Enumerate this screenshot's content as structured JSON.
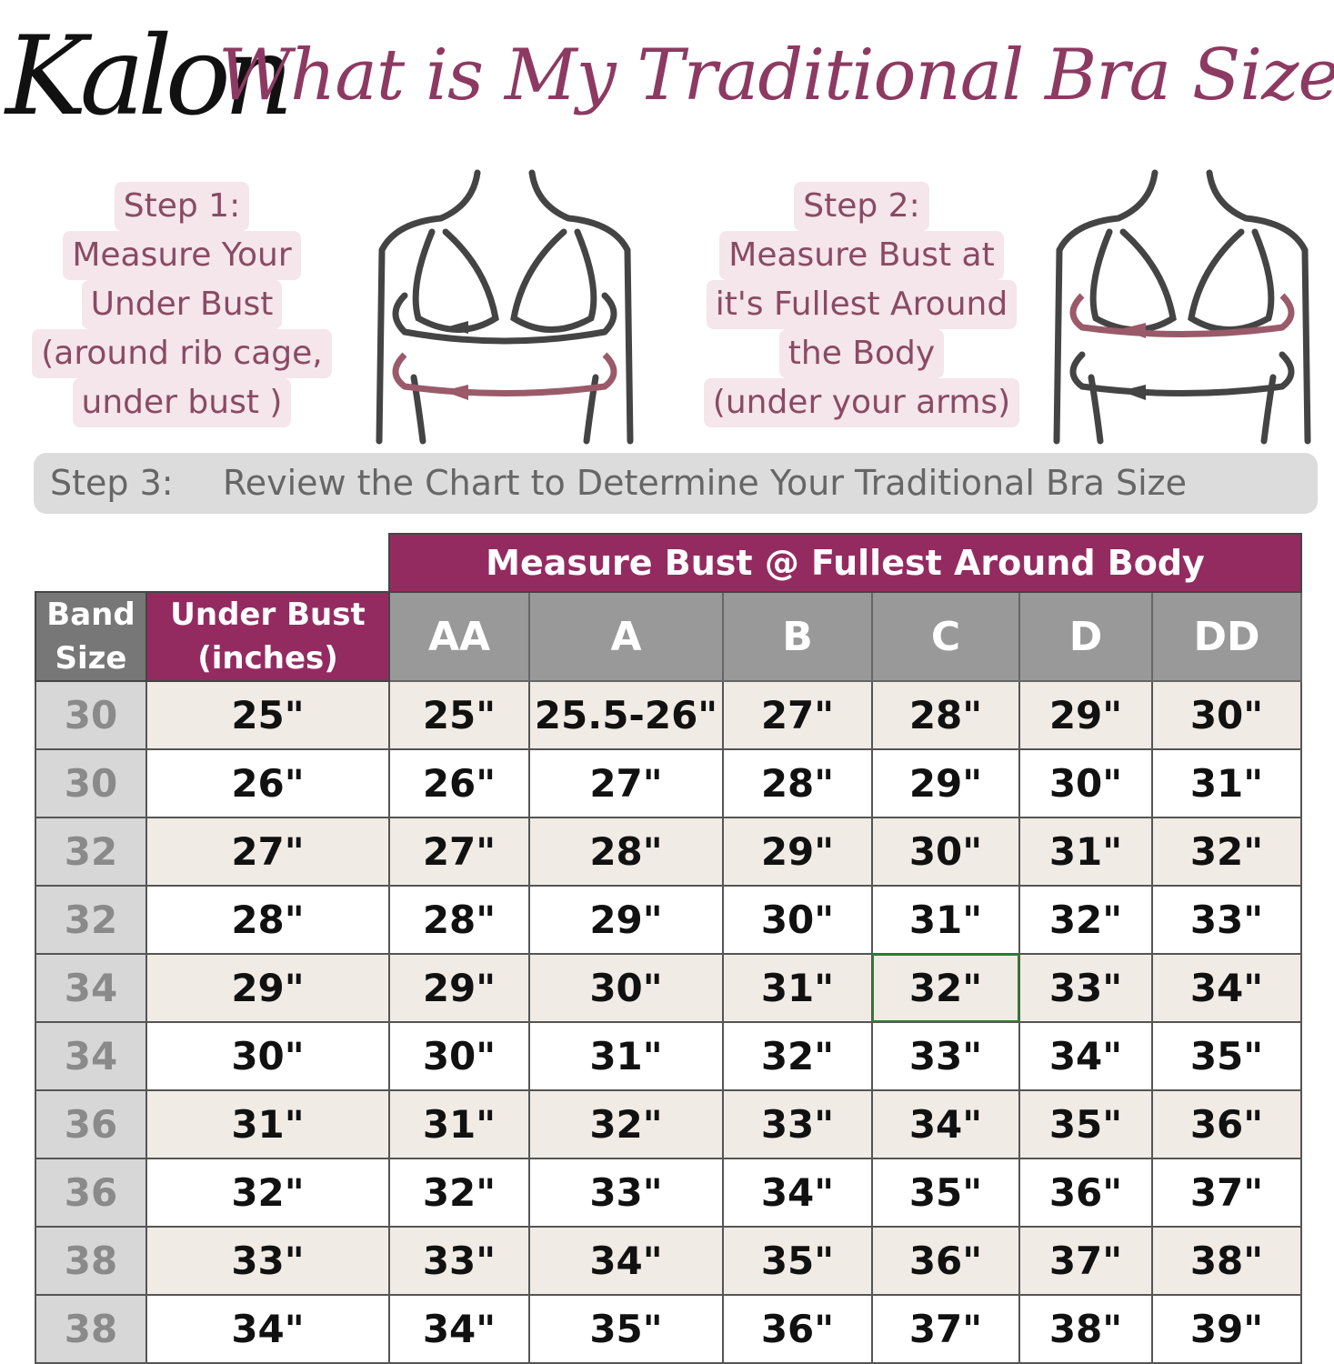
{
  "header": {
    "logo": "Kalon",
    "title": "What is My Traditional Bra Size?"
  },
  "steps": [
    {
      "lines": [
        "Step 1:",
        "Measure Your",
        "Under Bust",
        "(around rib cage,",
        "under bust )"
      ]
    },
    {
      "lines": [
        "Step 2:",
        "Measure Bust at",
        "it's Fullest Around",
        "the Body",
        "(under your arms)"
      ]
    }
  ],
  "step3": {
    "label": "Step 3:",
    "text": "Review the Chart to Determine Your Traditional Bra Size"
  },
  "colors": {
    "accent": "#942b60",
    "header_gray": "#999999",
    "band_gray": "#d7d7d7",
    "row_tint": "#f1ebe5",
    "arrow_mauve": "#9a5a6a"
  },
  "icons": [
    "torso-under-bust-measure-icon",
    "torso-full-bust-measure-icon"
  ],
  "chart_data": {
    "type": "table",
    "group_header": "Measure Bust @ Fullest Around Body",
    "columns": {
      "band": "Band Size",
      "under_bust": "Under Bust (inches)",
      "cups": [
        "AA",
        "A",
        "B",
        "C",
        "D",
        "DD"
      ]
    },
    "rows": [
      {
        "band": "30",
        "under_bust": "25\"",
        "cups": [
          "25\"",
          "25.5-26\"",
          "27\"",
          "28\"",
          "29\"",
          "30\""
        ]
      },
      {
        "band": "30",
        "under_bust": "26\"",
        "cups": [
          "26\"",
          "27\"",
          "28\"",
          "29\"",
          "30\"",
          "31\""
        ]
      },
      {
        "band": "32",
        "under_bust": "27\"",
        "cups": [
          "27\"",
          "28\"",
          "29\"",
          "30\"",
          "31\"",
          "32\""
        ]
      },
      {
        "band": "32",
        "under_bust": "28\"",
        "cups": [
          "28\"",
          "29\"",
          "30\"",
          "31\"",
          "32\"",
          "33\""
        ]
      },
      {
        "band": "34",
        "under_bust": "29\"",
        "cups": [
          "29\"",
          "30\"",
          "31\"",
          "32\"",
          "33\"",
          "34\""
        ]
      },
      {
        "band": "34",
        "under_bust": "30\"",
        "cups": [
          "30\"",
          "31\"",
          "32\"",
          "33\"",
          "34\"",
          "35\""
        ]
      },
      {
        "band": "36",
        "under_bust": "31\"",
        "cups": [
          "31\"",
          "32\"",
          "33\"",
          "34\"",
          "35\"",
          "36\""
        ]
      },
      {
        "band": "36",
        "under_bust": "32\"",
        "cups": [
          "32\"",
          "33\"",
          "34\"",
          "35\"",
          "36\"",
          "37\""
        ]
      },
      {
        "band": "38",
        "under_bust": "33\"",
        "cups": [
          "33\"",
          "34\"",
          "35\"",
          "36\"",
          "37\"",
          "38\""
        ]
      },
      {
        "band": "38",
        "under_bust": "34\"",
        "cups": [
          "34\"",
          "35\"",
          "36\"",
          "37\"",
          "38\"",
          "39\""
        ]
      }
    ]
  }
}
